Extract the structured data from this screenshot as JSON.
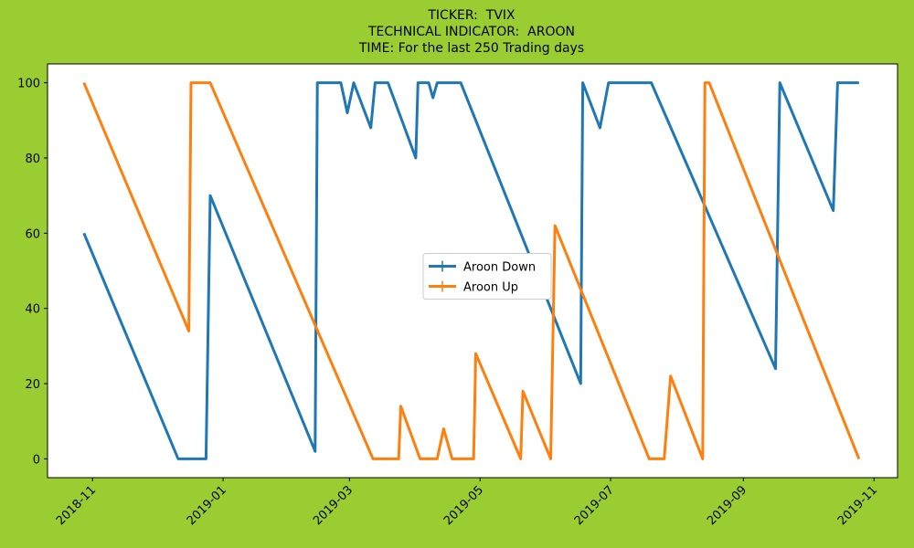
{
  "chart_data": {
    "type": "line",
    "title": [
      "TICKER:  TVIX",
      "TECHNICAL INDICATOR:  AROON",
      "TIME: For the last 250 Trading days"
    ],
    "background": "#9acd32",
    "legend": "center",
    "xlim": [
      "2018-10-11",
      "2019-11-12"
    ],
    "xticks": [
      {
        "value": "2018-11-01",
        "label": "2018-11"
      },
      {
        "value": "2019-01-01",
        "label": "2019-01"
      },
      {
        "value": "2019-03-01",
        "label": "2019-03"
      },
      {
        "value": "2019-05-01",
        "label": "2019-05"
      },
      {
        "value": "2019-07-01",
        "label": "2019-07"
      },
      {
        "value": "2019-09-01",
        "label": "2019-09"
      },
      {
        "value": "2019-11-01",
        "label": "2019-11"
      }
    ],
    "ylim": [
      -5,
      105
    ],
    "yticks": [
      0,
      20,
      40,
      60,
      80,
      100
    ],
    "series": [
      {
        "name": "Aroon Down",
        "color": "#1f77b4",
        "x": [
          "2018-10-28",
          "2018-12-11",
          "2018-12-24",
          "2018-12-26",
          "2019-02-13",
          "2019-02-14",
          "2019-02-25",
          "2019-02-28",
          "2019-03-03",
          "2019-03-11",
          "2019-03-13",
          "2019-03-19",
          "2019-04-01",
          "2019-04-02",
          "2019-04-07",
          "2019-04-09",
          "2019-04-11",
          "2019-04-22",
          "2019-06-17",
          "2019-06-18",
          "2019-06-26",
          "2019-06-30",
          "2019-07-20",
          "2019-09-16",
          "2019-09-18",
          "2019-10-13",
          "2019-10-15",
          "2019-10-25"
        ],
        "values": [
          60,
          0,
          0,
          70,
          2,
          100,
          100,
          92,
          100,
          88,
          100,
          100,
          80,
          100,
          100,
          96,
          100,
          100,
          20,
          100,
          88,
          100,
          100,
          24,
          100,
          66,
          100,
          100
        ]
      },
      {
        "name": "Aroon Up",
        "color": "#ff7f0e",
        "x": [
          "2018-10-28",
          "2018-12-16",
          "2018-12-17",
          "2018-12-26",
          "2019-03-12",
          "2019-03-24",
          "2019-03-25",
          "2019-04-03",
          "2019-04-11",
          "2019-04-14",
          "2019-04-18",
          "2019-04-28",
          "2019-04-29",
          "2019-05-20",
          "2019-05-21",
          "2019-06-03",
          "2019-06-05",
          "2019-07-19",
          "2019-07-26",
          "2019-07-29",
          "2019-08-13",
          "2019-08-14",
          "2019-08-16",
          "2019-10-25"
        ],
        "values": [
          100,
          34,
          100,
          100,
          0,
          0,
          14,
          0,
          0,
          8,
          0,
          0,
          28,
          0,
          18,
          0,
          62,
          0,
          0,
          22,
          0,
          100,
          100,
          0
        ]
      }
    ]
  }
}
